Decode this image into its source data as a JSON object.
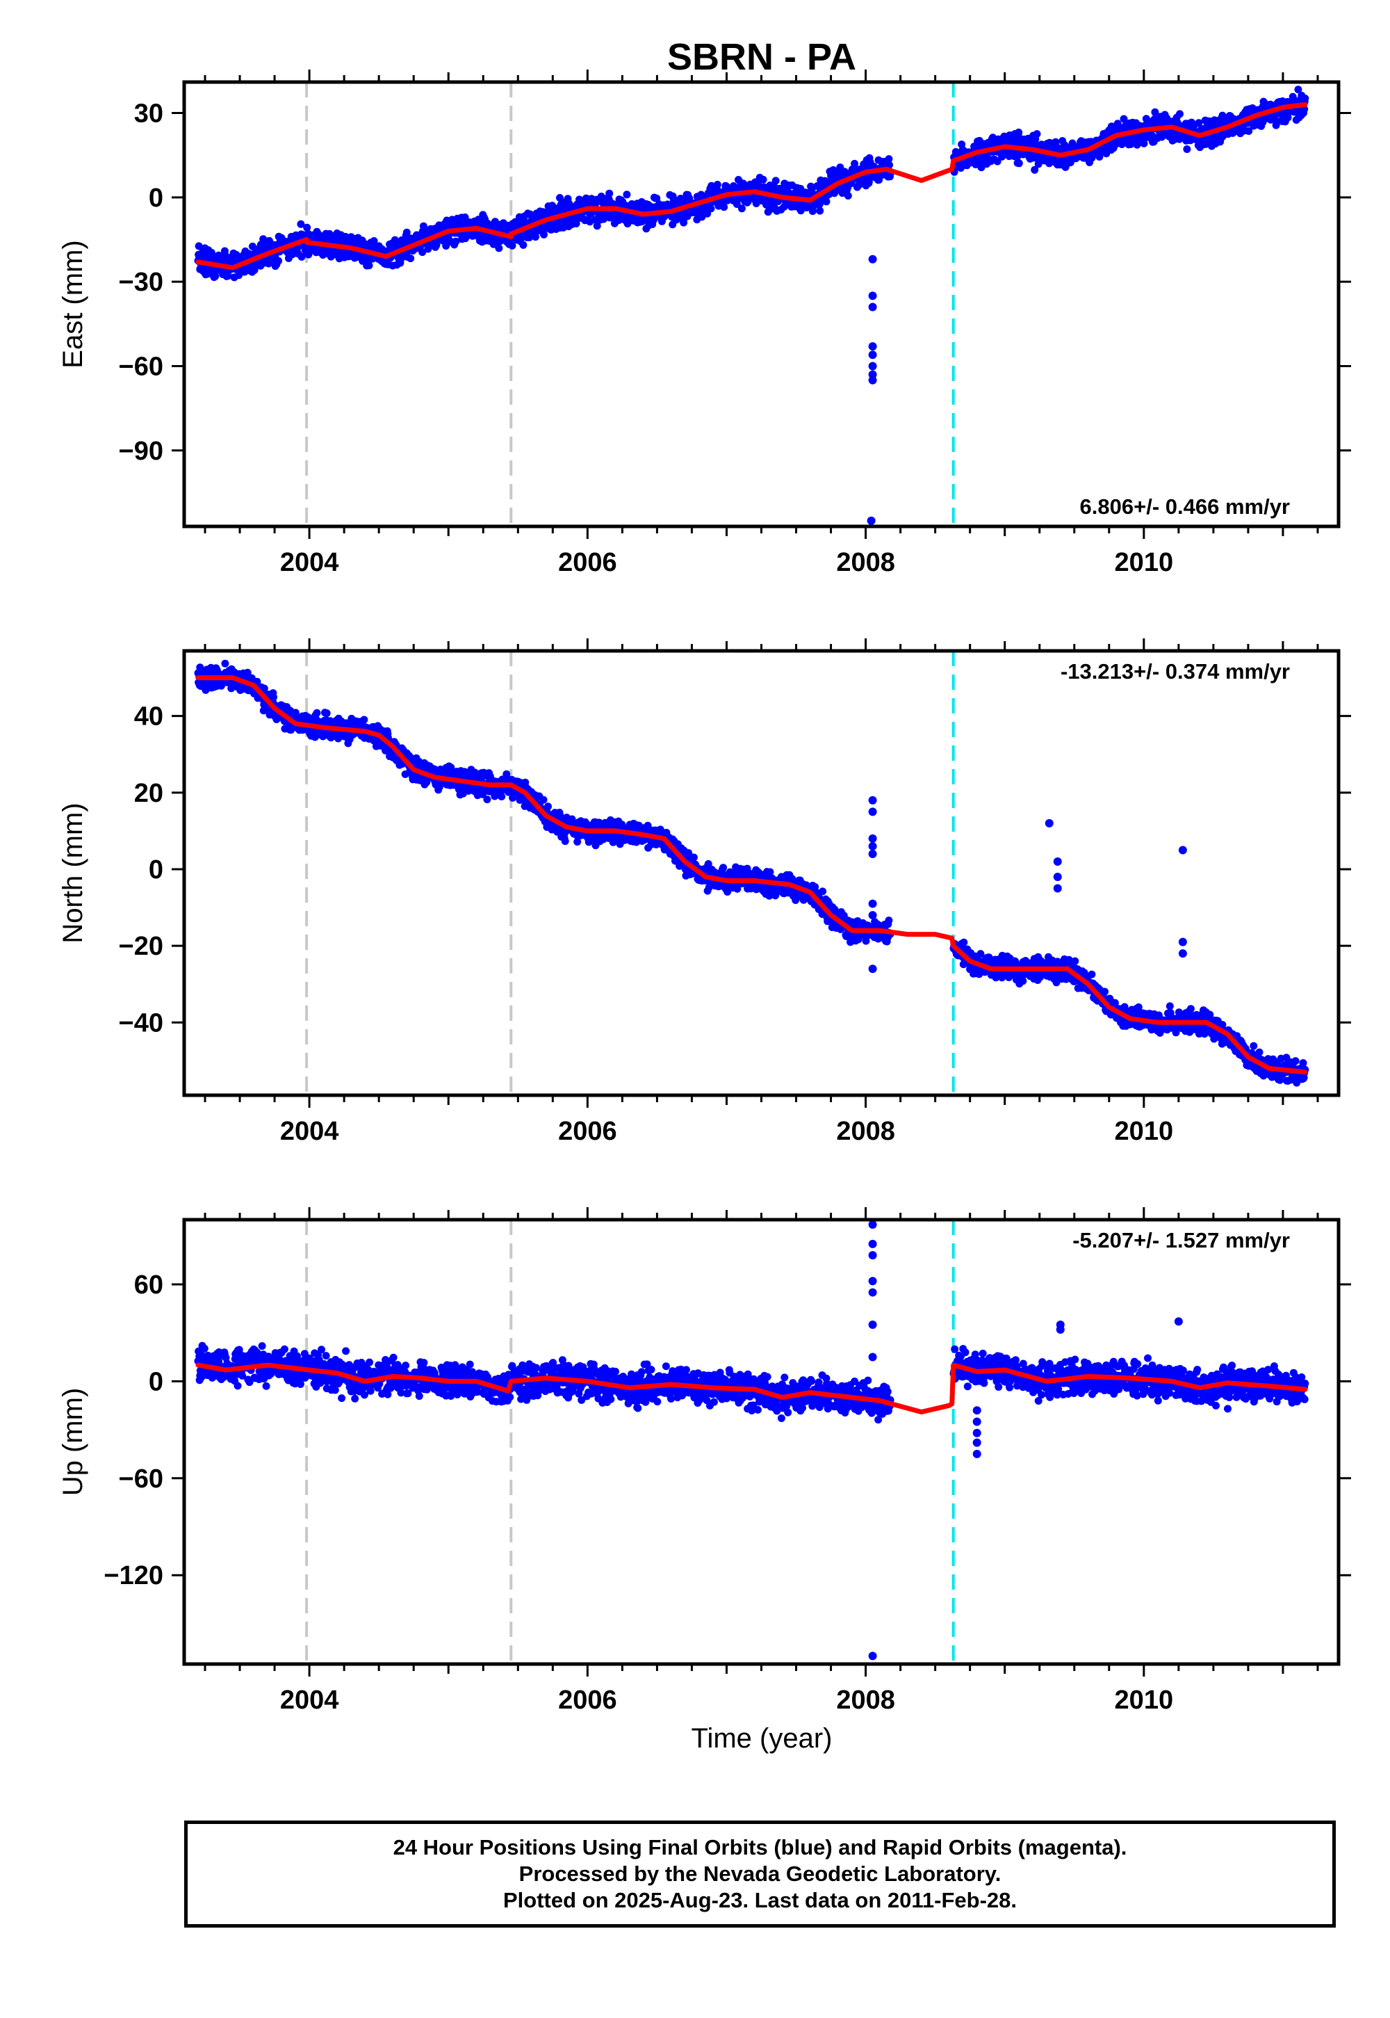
{
  "figure": {
    "title": "SBRN - PA",
    "xlabel": "Time (year)",
    "footer": [
      "24 Hour Positions Using Final Orbits (blue) and Rapid Orbits (magenta).",
      "Processed by the Nevada Geodetic Laboratory.",
      "Plotted on 2025-Aug-23. Last data on 2011-Feb-28."
    ]
  },
  "colors": {
    "final_orbits": "#0000ff",
    "model_fit": "#ff0000",
    "equipment_change": "#c8c8c8",
    "earthquake": "#00e5ee",
    "frame": "#000000"
  },
  "chart_data": [
    {
      "type": "scatter",
      "name": "east",
      "ylabel": "East (mm)",
      "rate_text": "6.806+/- 0.466 mm/yr",
      "rate_position": "bottom-right",
      "xlim": [
        2003.1,
        2011.4
      ],
      "ylim": [
        -117,
        41
      ],
      "xticks": [
        2004,
        2006,
        2008,
        2010
      ],
      "xtick_labels": [
        "2004",
        "2006",
        "2008",
        "2010"
      ],
      "yticks": [
        30,
        0,
        -30,
        -60,
        -90
      ],
      "ytick_labels": [
        "30",
        "0",
        "−30",
        "−60",
        "−90"
      ],
      "grid": false,
      "equipment_change_lines": [
        2003.98,
        2005.45
      ],
      "earthquake_lines": [
        2008.63
      ],
      "data_start": 2003.2,
      "data_end": 2011.16,
      "gap": [
        2008.18,
        2008.63
      ],
      "scatter_sd": 2.3,
      "offset_series": [
        {
          "x": 2008.05,
          "y": [
            -22,
            -35,
            -39,
            -53,
            -56,
            -60,
            -63,
            -65
          ]
        },
        {
          "x": 2008.04,
          "y": [
            -115
          ]
        }
      ],
      "fit": {
        "x": [
          2003.2,
          2003.45,
          2003.7,
          2003.98,
          2003.98,
          2004.3,
          2004.55,
          2004.8,
          2005.0,
          2005.2,
          2005.45,
          2005.45,
          2005.7,
          2006.0,
          2006.2,
          2006.4,
          2006.6,
          2006.8,
          2007.0,
          2007.2,
          2007.4,
          2007.6,
          2007.8,
          2008.0,
          2008.15,
          2008.4,
          2008.62,
          2008.63,
          2008.8,
          2009.0,
          2009.2,
          2009.4,
          2009.6,
          2009.8,
          2010.0,
          2010.2,
          2010.4,
          2010.6,
          2010.8,
          2011.0,
          2011.16
        ],
        "y": [
          -23,
          -25,
          -20,
          -15,
          -16,
          -18,
          -21,
          -16,
          -12,
          -11,
          -14,
          -13,
          -8,
          -4,
          -4,
          -6,
          -5,
          -2,
          1,
          2,
          0,
          -1,
          5,
          9,
          10,
          6,
          10,
          13,
          16,
          18,
          17,
          15,
          17,
          22,
          24,
          25,
          22,
          25,
          29,
          32,
          33
        ]
      }
    },
    {
      "type": "scatter",
      "name": "north",
      "ylabel": "North (mm)",
      "rate_text": "-13.213+/- 0.374 mm/yr",
      "rate_position": "top-right",
      "xlim": [
        2003.1,
        2011.4
      ],
      "ylim": [
        -59,
        57
      ],
      "xticks": [
        2004,
        2006,
        2008,
        2010
      ],
      "xtick_labels": [
        "2004",
        "2006",
        "2008",
        "2010"
      ],
      "yticks": [
        40,
        20,
        0,
        -20,
        -40
      ],
      "ytick_labels": [
        "40",
        "20",
        "0",
        "−20",
        "−40"
      ],
      "grid": false,
      "equipment_change_lines": [
        2003.98,
        2005.45
      ],
      "earthquake_lines": [
        2008.63
      ],
      "data_start": 2003.2,
      "data_end": 2011.16,
      "gap": [
        2008.18,
        2008.63
      ],
      "scatter_sd": 1.4,
      "offset_series": [
        {
          "x": 2008.05,
          "y": [
            18,
            15,
            8,
            6,
            4,
            -9,
            -12,
            -26
          ]
        },
        {
          "x": 2009.32,
          "y": [
            12
          ]
        },
        {
          "x": 2009.38,
          "y": [
            2,
            -2,
            -5
          ]
        },
        {
          "x": 2010.28,
          "y": [
            5,
            -19,
            -22
          ]
        }
      ],
      "fit": {
        "x": [
          2003.2,
          2003.45,
          2003.6,
          2003.75,
          2003.9,
          2004.1,
          2004.4,
          2004.5,
          2004.6,
          2004.75,
          2004.9,
          2005.1,
          2005.3,
          2005.45,
          2005.55,
          2005.7,
          2005.85,
          2006.0,
          2006.2,
          2006.4,
          2006.55,
          2006.7,
          2006.85,
          2007.0,
          2007.2,
          2007.45,
          2007.6,
          2007.75,
          2007.9,
          2008.1,
          2008.3,
          2008.5,
          2008.62,
          2008.63,
          2008.75,
          2008.9,
          2009.1,
          2009.3,
          2009.45,
          2009.6,
          2009.75,
          2009.9,
          2010.1,
          2010.3,
          2010.45,
          2010.6,
          2010.75,
          2010.9,
          2011.16
        ],
        "y": [
          50,
          50,
          48,
          42,
          38,
          37,
          36,
          35,
          32,
          26,
          24,
          23,
          22,
          22,
          20,
          14,
          11,
          10,
          10,
          9,
          8,
          2,
          -2,
          -3,
          -3,
          -4,
          -6,
          -12,
          -16,
          -16,
          -17,
          -17,
          -18,
          -20,
          -24,
          -26,
          -26,
          -26,
          -26,
          -30,
          -36,
          -39,
          -40,
          -40,
          -40,
          -43,
          -49,
          -52,
          -53
        ]
      }
    },
    {
      "type": "scatter",
      "name": "up",
      "ylabel": "Up (mm)",
      "rate_text": "-5.207+/- 1.527 mm/yr",
      "rate_position": "top-right",
      "xlim": [
        2003.1,
        2011.4
      ],
      "ylim": [
        -175,
        100
      ],
      "xticks": [
        2004,
        2006,
        2008,
        2010
      ],
      "xtick_labels": [
        "2004",
        "2006",
        "2008",
        "2010"
      ],
      "yticks": [
        60,
        0,
        -60,
        -120
      ],
      "ytick_labels": [
        "60",
        "0",
        "−60",
        "−120"
      ],
      "grid": false,
      "equipment_change_lines": [
        2003.98,
        2005.45
      ],
      "earthquake_lines": [
        2008.63
      ],
      "data_start": 2003.2,
      "data_end": 2011.16,
      "gap": [
        2008.18,
        2008.63
      ],
      "scatter_sd": 5.0,
      "offset_series": [
        {
          "x": 2008.05,
          "y": [
            97,
            85,
            78,
            62,
            55,
            35,
            15,
            -170
          ]
        },
        {
          "x": 2008.8,
          "y": [
            -18,
            -25,
            -32,
            -38,
            -45
          ]
        },
        {
          "x": 2009.4,
          "y": [
            35,
            32
          ]
        },
        {
          "x": 2010.25,
          "y": [
            37
          ]
        }
      ],
      "fit": {
        "x": [
          2003.2,
          2003.4,
          2003.7,
          2004.0,
          2004.2,
          2004.4,
          2004.6,
          2004.8,
          2005.0,
          2005.2,
          2005.43,
          2005.45,
          2005.7,
          2006.0,
          2006.3,
          2006.6,
          2006.9,
          2007.2,
          2007.4,
          2007.6,
          2007.9,
          2008.1,
          2008.4,
          2008.6,
          2008.62,
          2008.63,
          2008.8,
          2009.0,
          2009.3,
          2009.6,
          2009.9,
          2010.2,
          2010.4,
          2010.6,
          2010.9,
          2011.16
        ],
        "y": [
          10,
          7,
          10,
          7,
          5,
          0,
          3,
          2,
          0,
          0,
          -6,
          0,
          2,
          0,
          -4,
          -2,
          -4,
          -5,
          -10,
          -7,
          -10,
          -12,
          -19,
          -15,
          -14,
          10,
          6,
          7,
          0,
          3,
          2,
          0,
          -4,
          -1,
          -3,
          -5
        ]
      }
    }
  ]
}
